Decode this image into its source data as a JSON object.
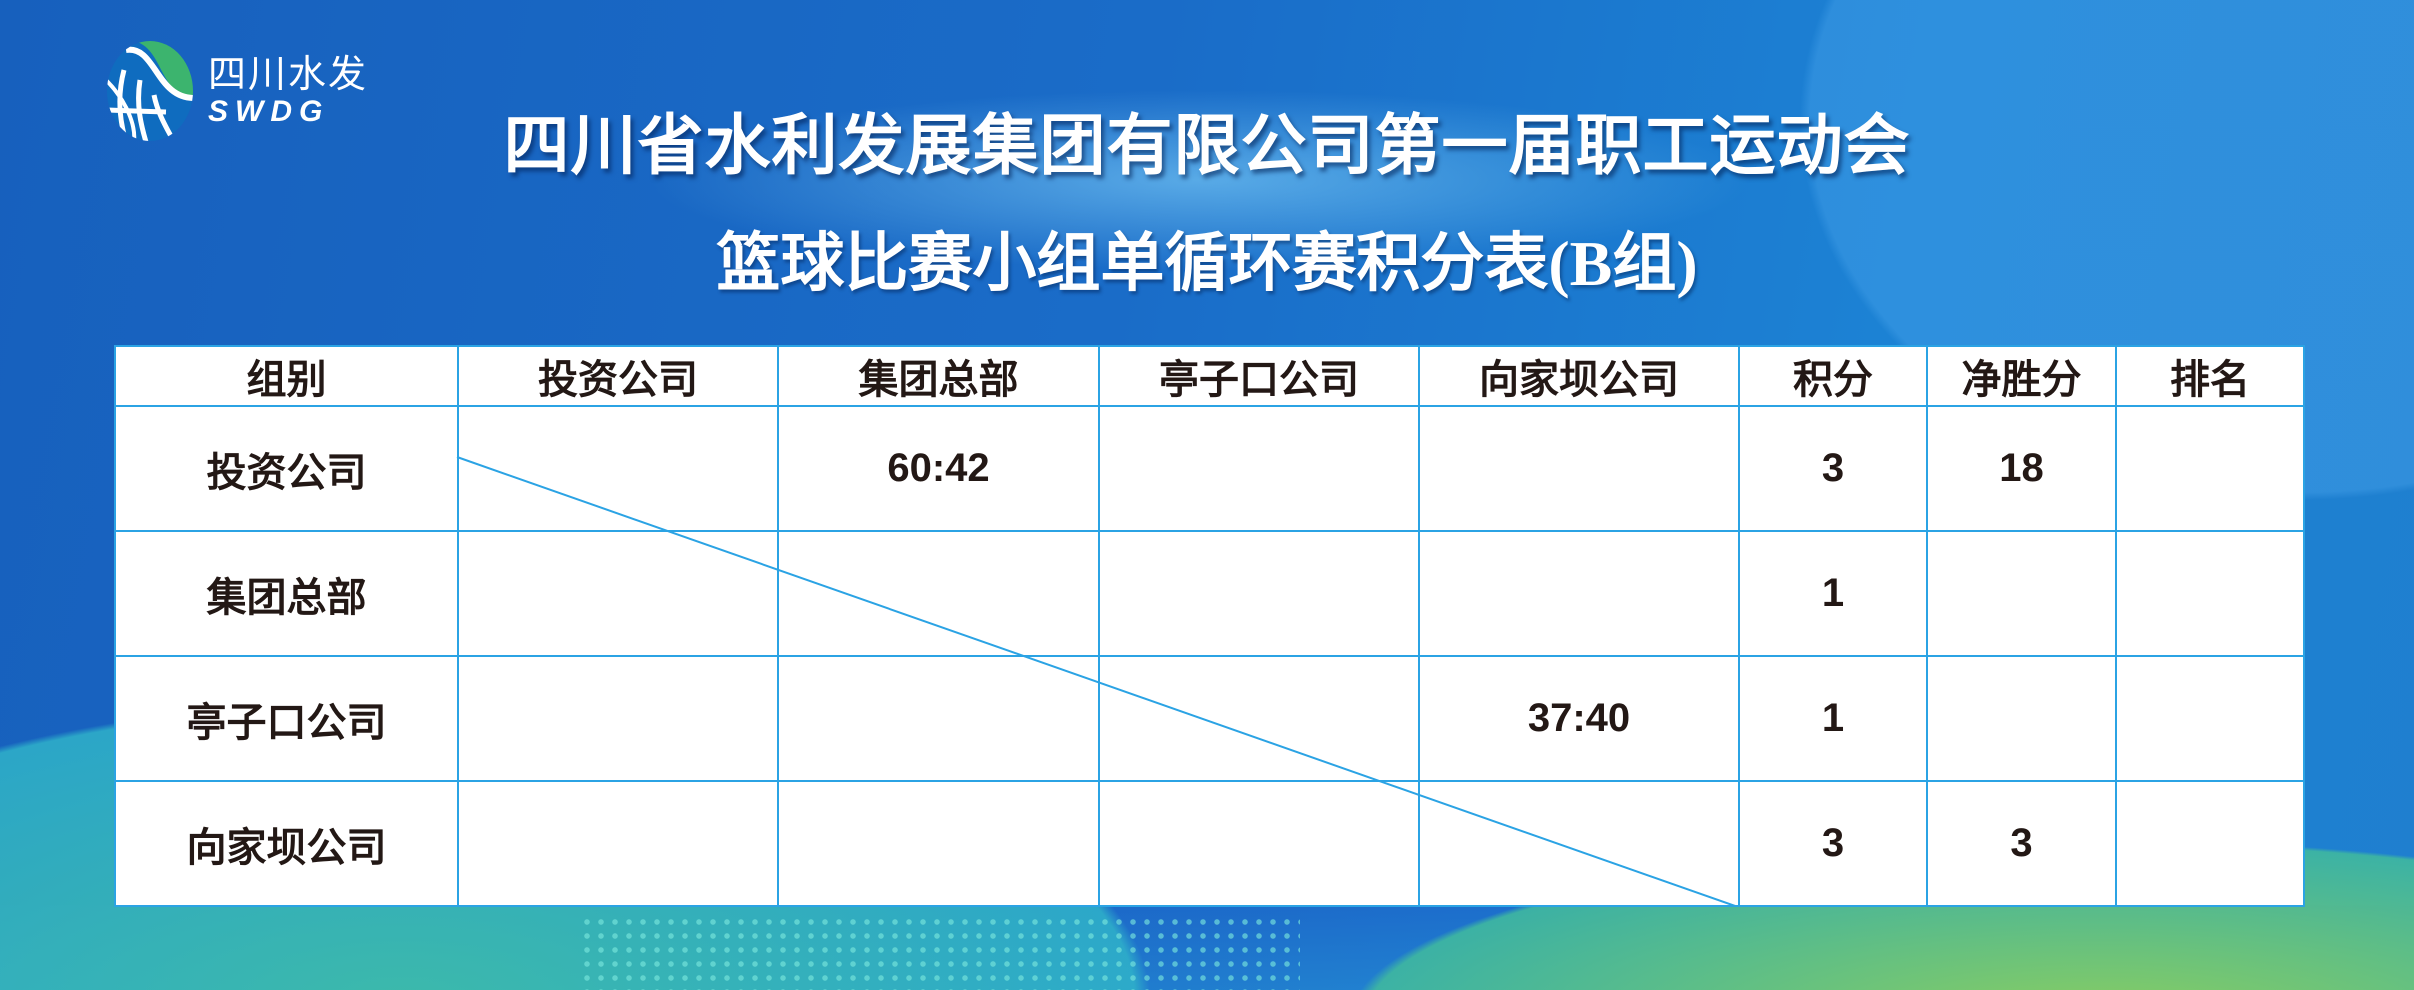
{
  "logo": {
    "cn": "四川水发",
    "en": "SWDG",
    "colors": {
      "green": "#3cb46e",
      "blue": "#0f6cbf"
    }
  },
  "title": "四川省水利发展集团有限公司第一届职工运动会",
  "subtitle": "篮球比赛小组单循环赛积分表(B组)",
  "table": {
    "headers": [
      "组别",
      "投资公司",
      "集团总部",
      "亭子口公司",
      "向家坝公司",
      "积分",
      "净胜分",
      "排名"
    ],
    "rows": [
      {
        "team": "投资公司",
        "vs": [
          "",
          "60:42",
          "",
          ""
        ],
        "points": "3",
        "net": "18",
        "rank": ""
      },
      {
        "team": "集团总部",
        "vs": [
          "",
          "",
          "",
          ""
        ],
        "points": "1",
        "net": "",
        "rank": ""
      },
      {
        "team": "亭子口公司",
        "vs": [
          "",
          "",
          "",
          "37:40"
        ],
        "points": "1",
        "net": "",
        "rank": ""
      },
      {
        "team": "向家坝公司",
        "vs": [
          "",
          "",
          "",
          ""
        ],
        "points": "3",
        "net": "3",
        "rank": ""
      }
    ],
    "border_color": "#2ba3e4"
  }
}
